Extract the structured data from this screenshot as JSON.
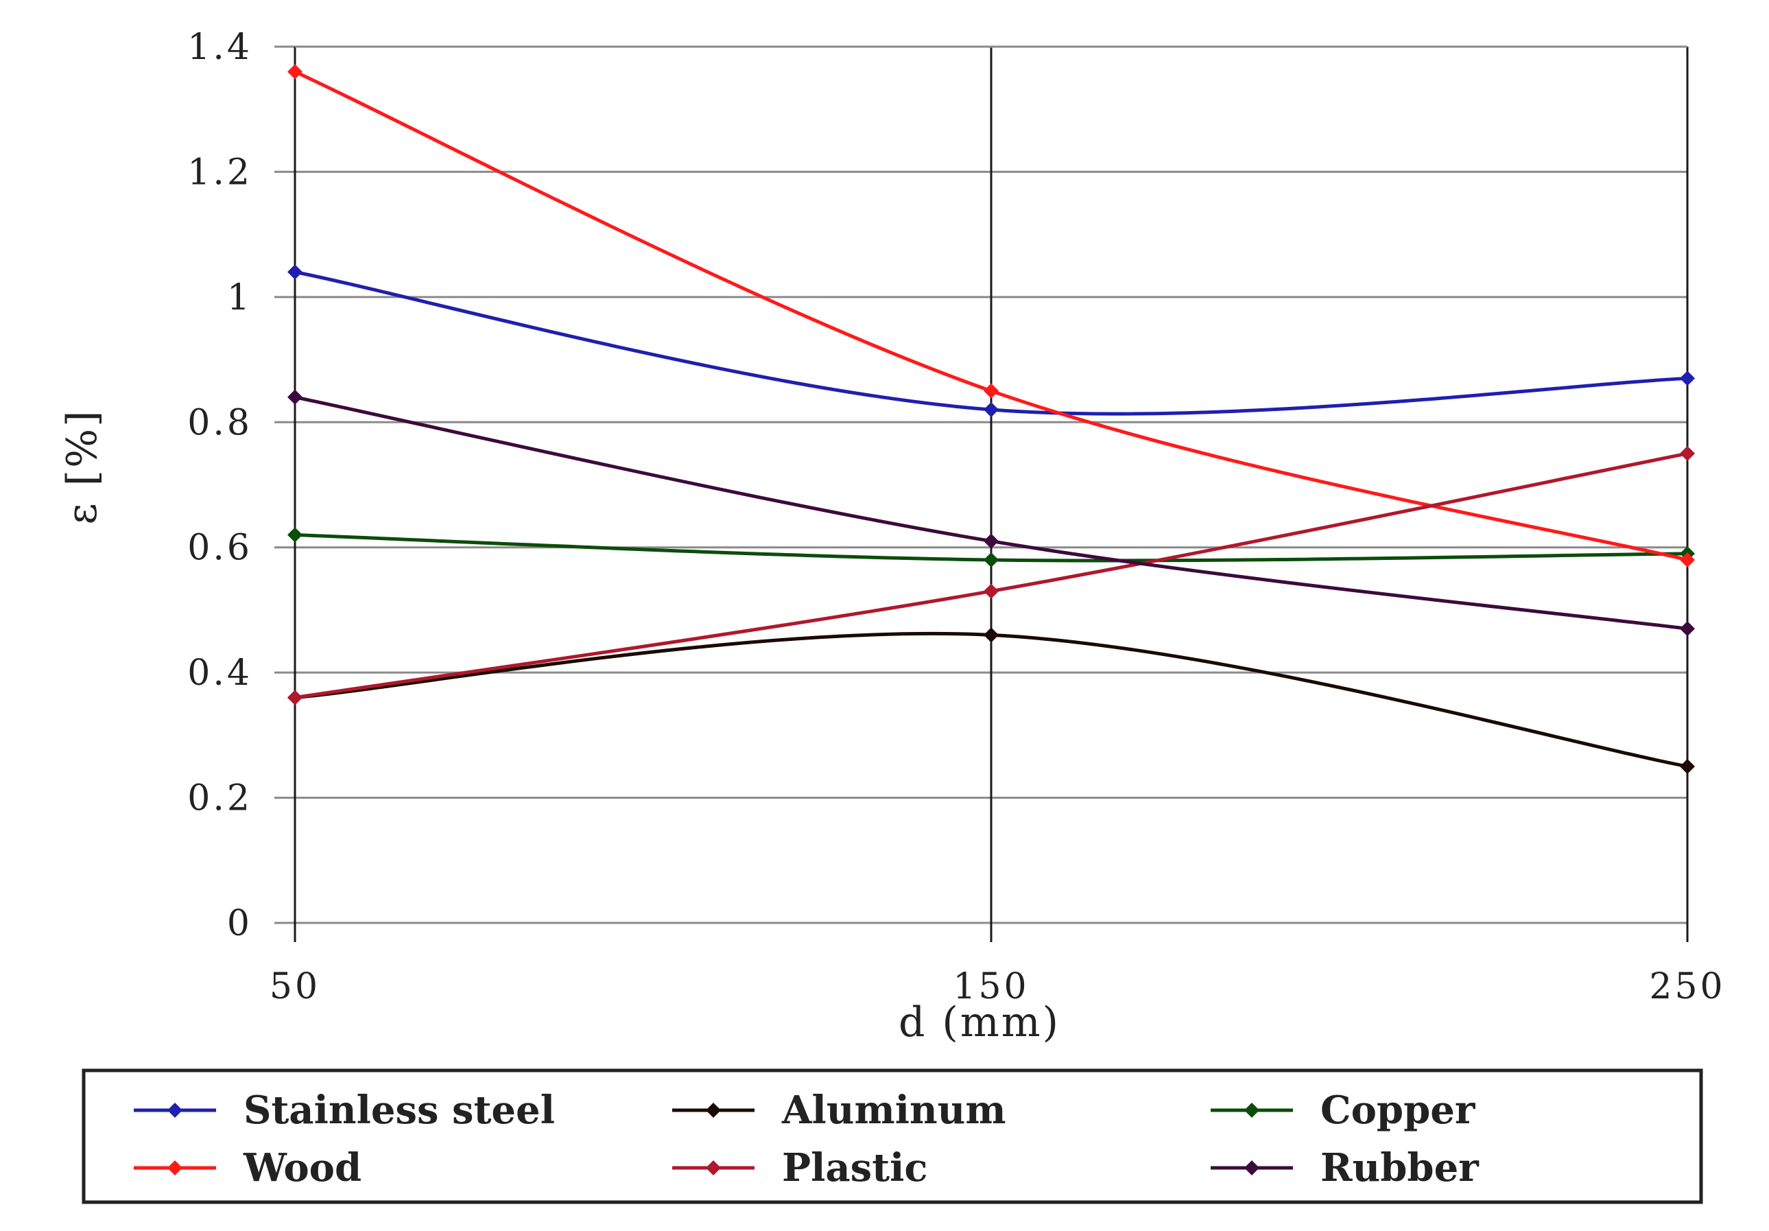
{
  "chart_data": {
    "type": "line",
    "title": "",
    "xlabel": "d (mm)",
    "ylabel": "ε [%]",
    "x": [
      50,
      150,
      250
    ],
    "xticks": [
      "50",
      "150",
      "250"
    ],
    "ylim": [
      0,
      1.4
    ],
    "yticks": [
      "0",
      "0.2",
      "0.4",
      "0.6",
      "0.8",
      "1",
      "1.2",
      "1.4"
    ],
    "ytick_values": [
      0,
      0.2,
      0.4,
      0.6,
      0.8,
      1.0,
      1.2,
      1.4
    ],
    "grid": true,
    "legend_position": "bottom",
    "series": [
      {
        "name": "Stainless steel",
        "color": "#1f1fb0",
        "values": [
          1.04,
          0.82,
          0.87
        ]
      },
      {
        "name": "Aluminum",
        "color": "#1a0a00",
        "values": [
          0.36,
          0.46,
          0.25
        ]
      },
      {
        "name": "Copper",
        "color": "#0b4d0b",
        "values": [
          0.62,
          0.58,
          0.59
        ]
      },
      {
        "name": "Wood",
        "color": "#ff1a1a",
        "values": [
          1.36,
          0.85,
          0.58
        ]
      },
      {
        "name": "Plastic",
        "color": "#b0182c",
        "values": [
          0.36,
          0.53,
          0.75
        ]
      },
      {
        "name": "Rubber",
        "color": "#3d0a3d",
        "values": [
          0.84,
          0.61,
          0.47
        ]
      }
    ]
  }
}
